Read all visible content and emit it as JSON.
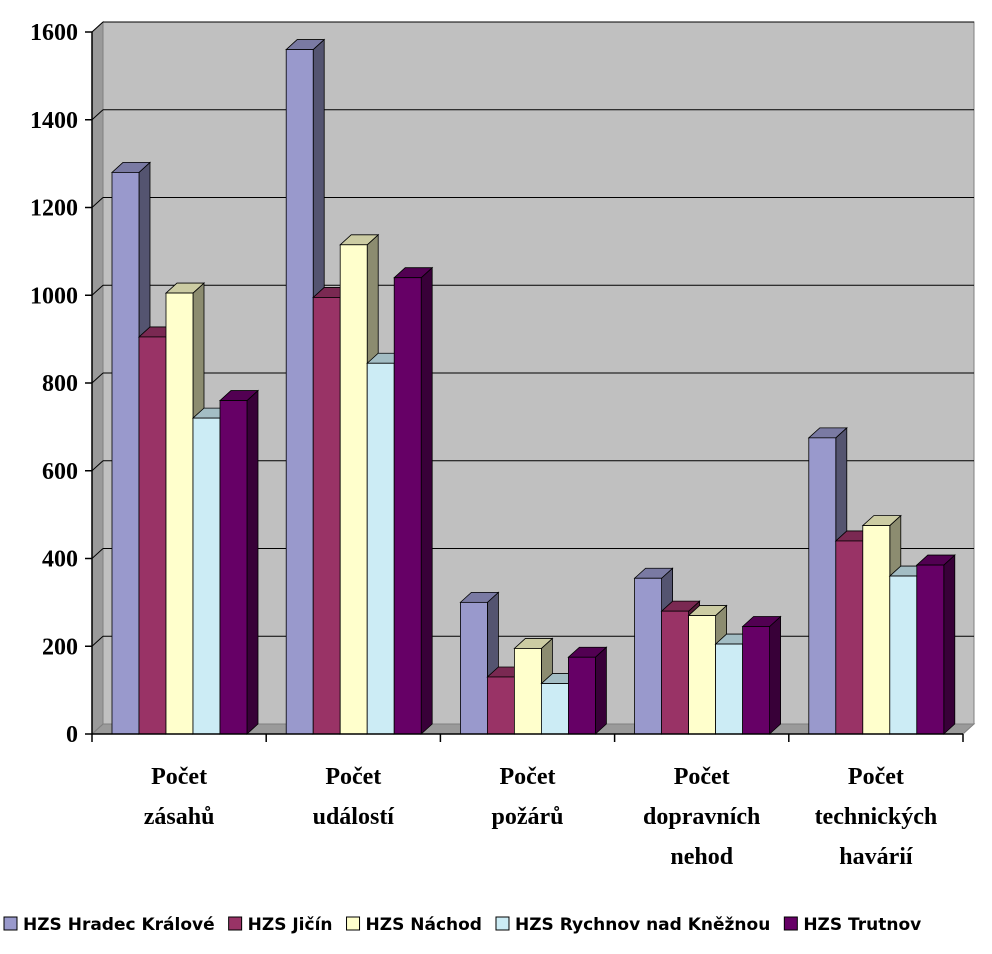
{
  "chart_data": {
    "type": "bar",
    "variant": "3d-clustered-column",
    "title": "",
    "xlabel": "",
    "ylabel": "",
    "ylim": [
      0,
      1600
    ],
    "yticks": [
      0,
      200,
      400,
      600,
      800,
      1000,
      1200,
      1400,
      1600
    ],
    "grid": true,
    "legend_position": "bottom",
    "categories": [
      [
        "Počet",
        "zásahů"
      ],
      [
        "Počet",
        "událostí"
      ],
      [
        "Počet",
        "požárů"
      ],
      [
        "Počet",
        "dopravních",
        "nehod"
      ],
      [
        "Počet",
        "technických",
        "havárií"
      ]
    ],
    "series": [
      {
        "name": "HZS Hradec Králové",
        "color": "#9999cc",
        "values": [
          1280,
          1560,
          300,
          355,
          675
        ]
      },
      {
        "name": "HZS Jičín",
        "color": "#993366",
        "values": [
          905,
          995,
          130,
          280,
          440
        ]
      },
      {
        "name": "HZS Náchod",
        "color": "#ffffcc",
        "values": [
          1005,
          1115,
          195,
          270,
          475
        ]
      },
      {
        "name": "HZS Rychnov nad Kněžnou",
        "color": "#ccecf5",
        "values": [
          720,
          845,
          115,
          205,
          360
        ]
      },
      {
        "name": "HZS Trutnov",
        "color": "#660066",
        "values": [
          760,
          1040,
          175,
          245,
          385
        ]
      }
    ]
  }
}
